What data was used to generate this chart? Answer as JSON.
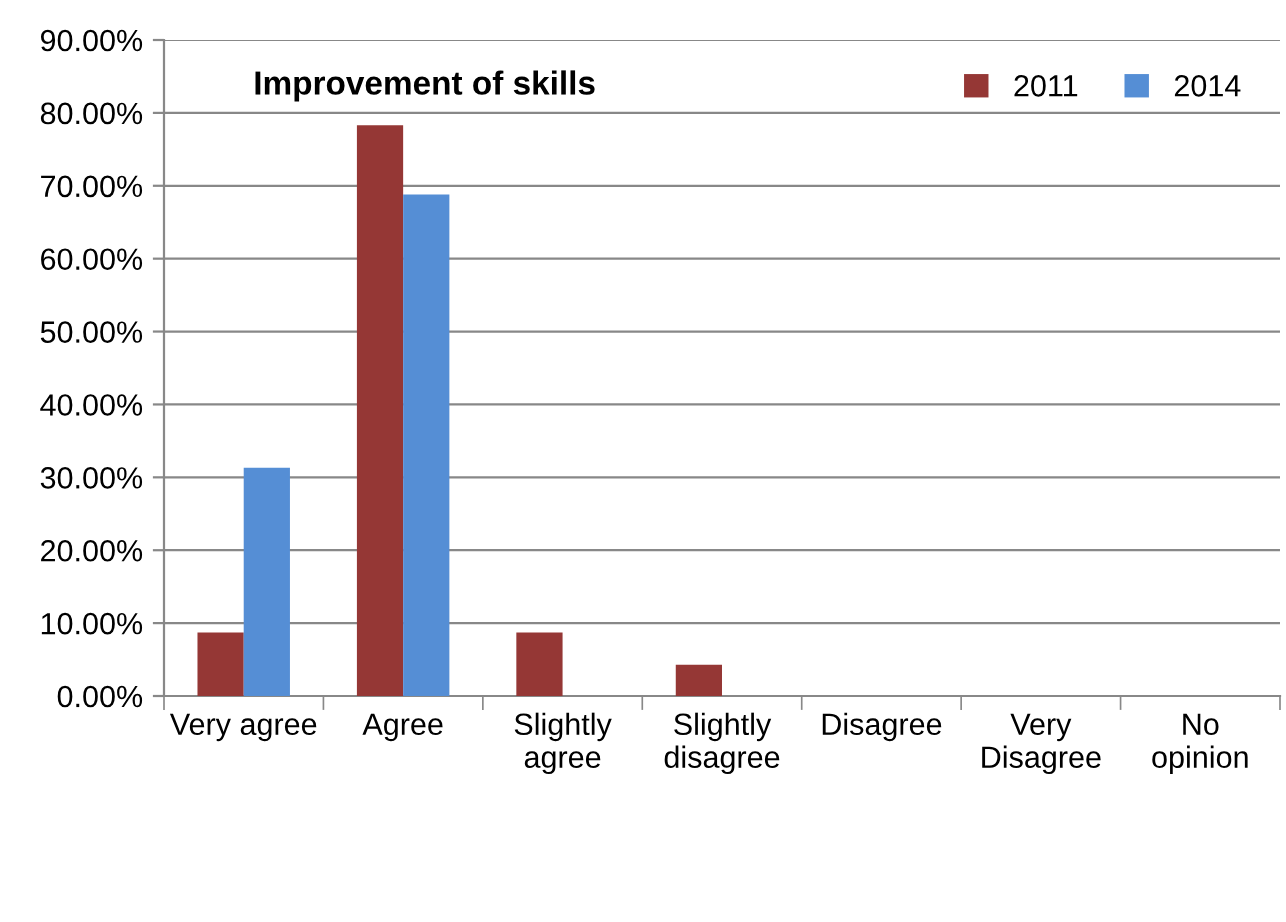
{
  "chart_data": {
    "type": "bar",
    "title": "Improvement of skills",
    "categories": [
      "Very agree",
      "Agree",
      "Slightly\nagree",
      "Slightly\ndisagree",
      "Disagree",
      "Very\nDisagree",
      "No\nopinion"
    ],
    "series": [
      {
        "name": "2011",
        "color": "#953735",
        "values": [
          8.7,
          78.3,
          8.7,
          4.3,
          0,
          0,
          0
        ]
      },
      {
        "name": "2014",
        "color": "#558ed5",
        "values": [
          31.3,
          68.8,
          0,
          0,
          0,
          0,
          0
        ]
      }
    ],
    "ylim": [
      0,
      90
    ],
    "yticks": [
      {
        "value": 0,
        "label": "0.00%"
      },
      {
        "value": 10,
        "label": "10.00%"
      },
      {
        "value": 20,
        "label": "20.00%"
      },
      {
        "value": 30,
        "label": "30.00%"
      },
      {
        "value": 40,
        "label": "40.00%"
      },
      {
        "value": 50,
        "label": "50.00%"
      },
      {
        "value": 60,
        "label": "60.00%"
      },
      {
        "value": 70,
        "label": "70.00%"
      },
      {
        "value": 80,
        "label": "80.00%"
      },
      {
        "value": 90,
        "label": "90.00%"
      }
    ],
    "grid": "y",
    "legend": "top right"
  }
}
